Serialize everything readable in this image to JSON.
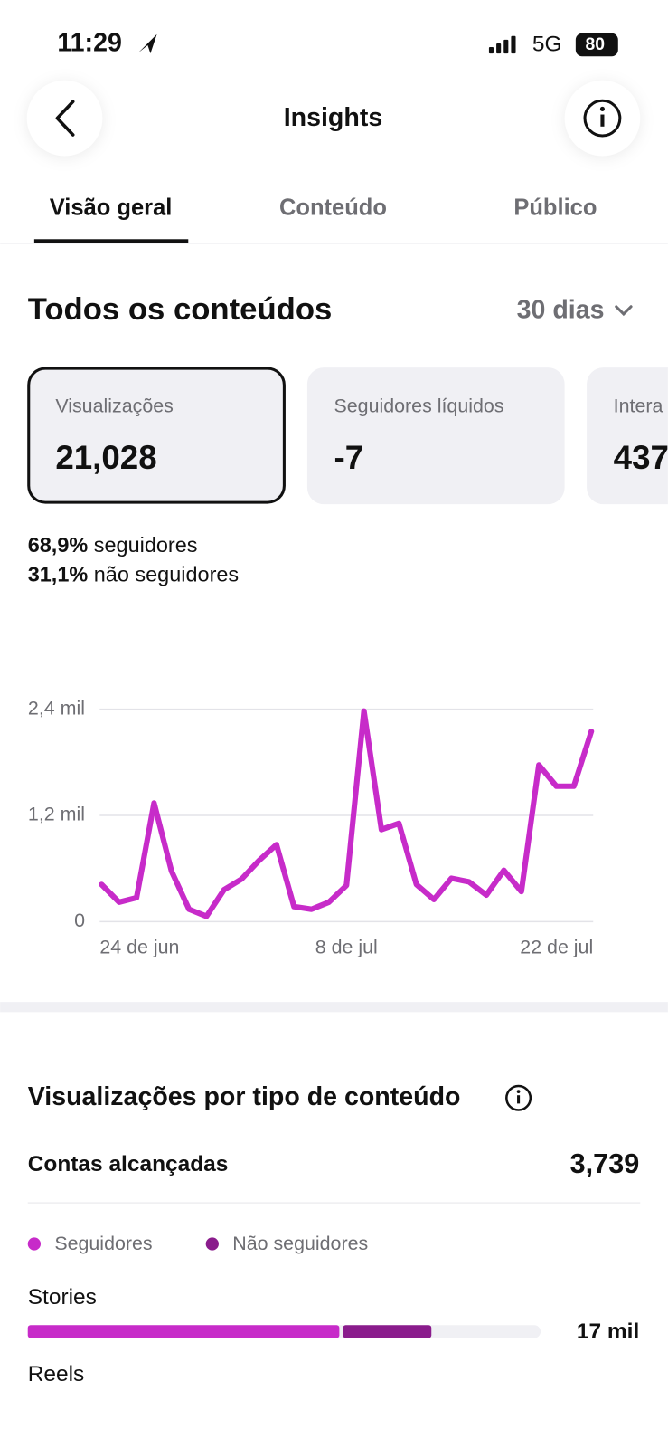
{
  "status_bar": {
    "time": "11:29",
    "network": "5G",
    "battery": "80"
  },
  "header": {
    "title": "Insights"
  },
  "tabs": [
    "Visão geral",
    "Conteúdo",
    "Público"
  ],
  "section": {
    "title": "Todos os conteúdos",
    "period": "30 dias"
  },
  "cards": [
    {
      "label": "Visualizações",
      "value": "21,028"
    },
    {
      "label": "Seguidores líquidos",
      "value": "-7"
    },
    {
      "label": "Intera",
      "value": "437"
    }
  ],
  "audience_split": [
    {
      "percent": "68,9%",
      "label": "seguidores"
    },
    {
      "percent": "31,1%",
      "label": "não seguidores"
    }
  ],
  "content_section": {
    "title": "Visualizações por tipo de conteúdo",
    "reach_label": "Contas alcançadas",
    "reach_value": "3,739",
    "next_type": "Reels"
  },
  "chart_data": [
    {
      "type": "line",
      "color": "#c72bc9",
      "grid": true,
      "categories": [
        "24 de jun",
        null,
        null,
        null,
        null,
        null,
        null,
        null,
        null,
        null,
        null,
        null,
        null,
        null,
        "8 de jul",
        null,
        null,
        null,
        null,
        null,
        null,
        null,
        null,
        null,
        null,
        null,
        null,
        null,
        "22 de jul"
      ],
      "values": [
        420,
        220,
        270,
        1340,
        570,
        140,
        60,
        360,
        480,
        690,
        870,
        170,
        140,
        220,
        410,
        2380,
        1040,
        1110,
        420,
        250,
        490,
        450,
        300,
        580,
        340,
        1770,
        1530,
        1530,
        2150
      ],
      "ylim": [
        0,
        2400
      ],
      "yticks": [
        0,
        {
          "value": 1200,
          "label": "1,2 mil"
        },
        {
          "value": 2400,
          "label": "2,4 mil"
        }
      ]
    },
    {
      "type": "bar",
      "orientation": "horizontal",
      "stacked": true,
      "categories": [
        "Stories"
      ],
      "series": [
        {
          "name": "Seguidores",
          "color": "#c72bc9",
          "values": [
            13200
          ]
        },
        {
          "name": "Não seguidores",
          "color": "#8a1c8c",
          "values": [
            3800
          ]
        }
      ],
      "xlim": [
        0,
        21600
      ],
      "total_labels": [
        "17 mil"
      ]
    }
  ]
}
